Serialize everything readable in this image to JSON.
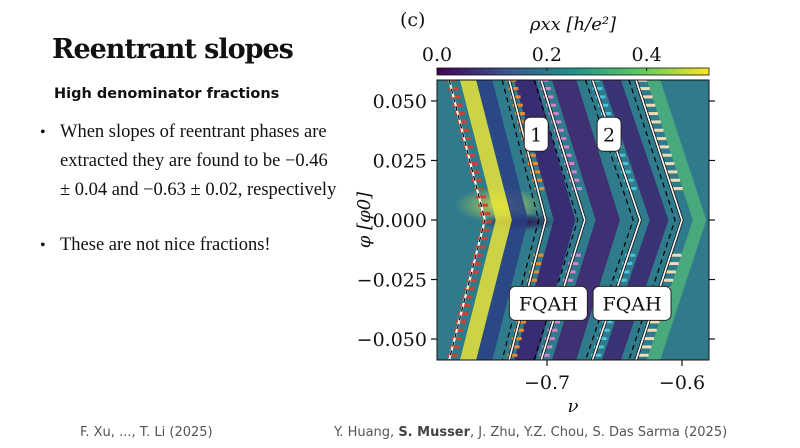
{
  "slide": {
    "title": "Reentrant slopes",
    "subtitle": "High denominator fractions",
    "bullets": [
      "When slopes of reentrant phases are extracted they are found to be −0.46 ± 0.04 and −0.63 ± 0.02, respectively",
      "These are not nice fractions!"
    ],
    "citations": {
      "left": "F. Xu, ..., T. Li (2025)",
      "right_prefix": "Y. Huang, ",
      "right_bold": "S. Musser",
      "right_suffix": ", J. Zhu, Y.Z. Chou, S. Das Sarma (2025)"
    }
  },
  "chart_data": {
    "type": "heatmap",
    "panel_label": "(c)",
    "colorbar": {
      "label": "ρxx [h/e²]",
      "range": [
        0.0,
        0.5
      ],
      "ticks": [
        "0.0",
        "0.2",
        "0.4"
      ],
      "colormap": "viridis"
    },
    "xlabel": "ν",
    "ylabel": "φ [φ0]",
    "xlim": [
      -0.7815,
      -0.58
    ],
    "ylim": [
      -0.0588,
      0.0588
    ],
    "xticks": [
      {
        "v": -0.7,
        "label": "−0.7"
      },
      {
        "v": -0.6,
        "label": "−0.6"
      }
    ],
    "yticks": [
      {
        "v": 0.05,
        "label": "0.050"
      },
      {
        "v": 0.025,
        "label": "0.025"
      },
      {
        "v": 0.0,
        "label": "0.000"
      },
      {
        "v": -0.025,
        "label": "−0.025"
      },
      {
        "v": -0.05,
        "label": "−0.050"
      }
    ],
    "annotations": [
      {
        "text": "1",
        "nu": -0.708,
        "phi": 0.036
      },
      {
        "text": "2",
        "nu": -0.654,
        "phi": 0.036
      },
      {
        "text": "FQAH",
        "nu": -0.699,
        "phi": -0.035
      },
      {
        "text": "FQAH",
        "nu": -0.637,
        "phi": -0.035
      }
    ],
    "chevron_lines": [
      {
        "vertex_nu": -0.746,
        "slope_k": 0.45,
        "marker_color": "#d1412f"
      },
      {
        "vertex_nu": -0.701,
        "slope_k": 0.46,
        "marker_color": "#f0892a"
      },
      {
        "vertex_nu": -0.672,
        "slope_k": 0.55,
        "marker_color": "#d77fd0"
      },
      {
        "vertex_nu": -0.631,
        "slope_k": 0.6,
        "marker_color": "#4cc3dc"
      },
      {
        "vertex_nu": -0.6,
        "slope_k": 0.58,
        "marker_color": "#f0dcb4"
      }
    ],
    "bands": [
      {
        "vertex_nu": -0.738,
        "slope_k": 0.45,
        "width_nu": 0.012,
        "color": "#e8e43a"
      },
      {
        "vertex_nu": -0.726,
        "slope_k": 0.45,
        "width_nu": 0.012,
        "color": "#2a3f85"
      },
      {
        "vertex_nu": -0.695,
        "slope_k": 0.5,
        "width_nu": 0.016,
        "color": "#3a1f6f"
      },
      {
        "vertex_nu": -0.664,
        "slope_k": 0.55,
        "width_nu": 0.018,
        "color": "#41236e"
      },
      {
        "vertex_nu": -0.624,
        "slope_k": 0.6,
        "width_nu": 0.014,
        "color": "#3b2670"
      },
      {
        "vertex_nu": -0.592,
        "slope_k": 0.58,
        "width_nu": 0.01,
        "color": "#4fb07a"
      }
    ],
    "colors": {
      "background": "#2f7b8c",
      "line_solid": "#ffffff",
      "line_dashed": "#000000"
    }
  }
}
